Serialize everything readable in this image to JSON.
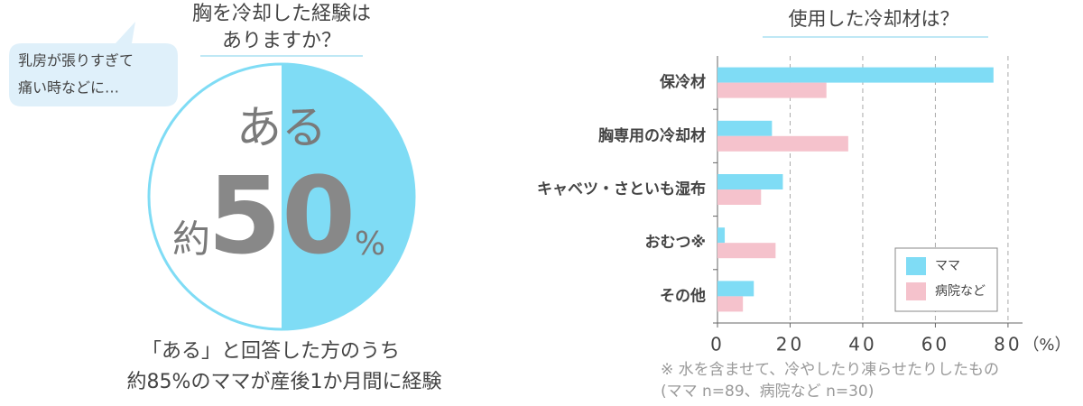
{
  "chart_data": [
    {
      "type": "pie",
      "title": [
        "胸を冷却した経験は",
        "ありますか？"
      ],
      "bubble": [
        "乳房が張りすぎて",
        "痛い時などに…"
      ],
      "label": "ある",
      "prefix": "約",
      "unit": "%",
      "values": [
        50,
        50
      ],
      "colors": [
        "#7fdcf5",
        "#ffffff"
      ],
      "caption": [
        "「ある」と回答した方のうち",
        "約85%のママが産後1か月間に経験"
      ]
    },
    {
      "type": "hbar",
      "title": "使用した冷却材は？",
      "categories": [
        "保冷材",
        "胸専用の冷却材",
        "キャベツ・さといも湿布",
        "おむつ※",
        "その他"
      ],
      "series": [
        {
          "name": "ママ",
          "color": "#7fdcf5",
          "values": [
            76,
            15,
            18,
            2,
            10
          ]
        },
        {
          "name": "病院など",
          "color": "#f5c2cc",
          "values": [
            30,
            36,
            12,
            16,
            7
          ]
        }
      ],
      "xlim": [
        0,
        84
      ],
      "xticks": [
        0,
        20,
        40,
        60,
        80
      ],
      "xunit": "（%）",
      "grid": true,
      "legend": "lower right",
      "notes": [
        "※ 水を含ませて、冷やしたり凍らせたりしたもの",
        "(ママ n=89、病院など n=30)"
      ]
    }
  ]
}
